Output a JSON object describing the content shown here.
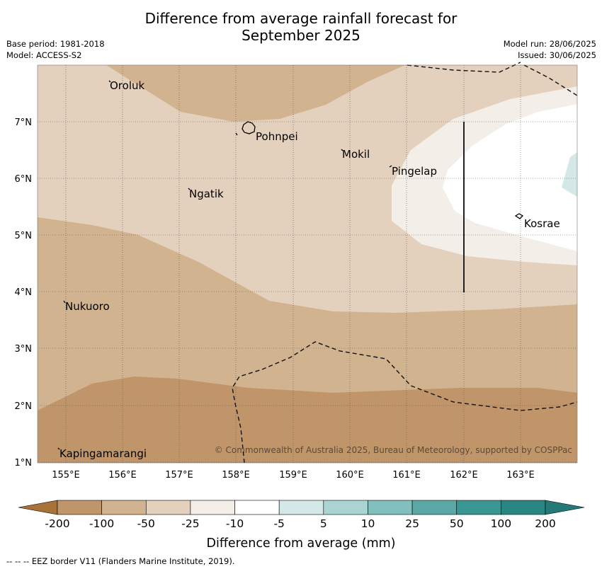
{
  "title_line1": "Difference from average rainfall forecast for",
  "title_line2": "September 2025",
  "base_period": "Base period: 1981-2018",
  "model": "Model: ACCESS-S2",
  "model_run": "Model run: 28/06/2025",
  "issued": "Issued: 30/06/2025",
  "copyright": "© Commonwealth of Australia 2025, Bureau of Meteorology, supported by COSPPac",
  "places": [
    "Oroluk",
    "Pohnpei",
    "Mokil",
    "Pingelap",
    "Ngatik",
    "Kosrae",
    "Nukuoro",
    "Kapingamarangi"
  ],
  "lon_labels": [
    "155°E",
    "156°E",
    "157°E",
    "158°E",
    "159°E",
    "160°E",
    "161°E",
    "162°E",
    "163°E"
  ],
  "lat_labels": [
    "7°N",
    "6°N",
    "5°N",
    "4°N",
    "3°N",
    "2°N",
    "1°N"
  ],
  "colorbar": {
    "ticks": [
      "-200",
      "-100",
      "-50",
      "-25",
      "-10",
      "-5",
      "5",
      "10",
      "25",
      "50",
      "100",
      "200"
    ],
    "colors": [
      "#a87238",
      "#c0956a",
      "#d2b38f",
      "#e3d0bd",
      "#f3eee8",
      "#ffffff",
      "#d4e8e7",
      "#a9d4d2",
      "#82c0bd",
      "#5aa9a6",
      "#3a9693",
      "#2a8683",
      "#237a78"
    ],
    "title": "Difference from average (mm)"
  },
  "legend_footer": "--  --  -- EEZ border V11 (Flanders Marine Institute, 2019)."
}
